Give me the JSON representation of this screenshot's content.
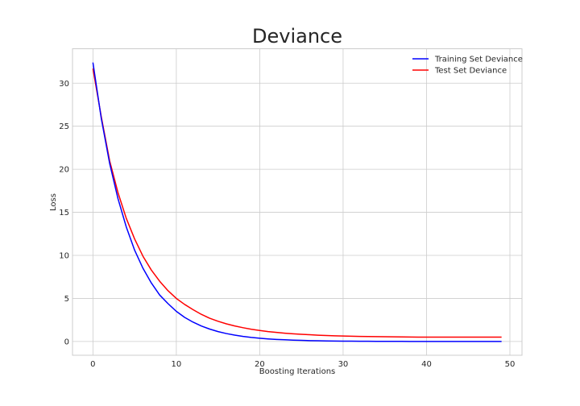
{
  "chart_data": {
    "type": "line",
    "title": "Deviance",
    "xlabel": "Boosting Iterations",
    "ylabel": "Loss",
    "xlim": [
      -2.45,
      51.45
    ],
    "ylim": [
      -1.6,
      34.0
    ],
    "xticks": [
      0,
      10,
      20,
      30,
      40,
      50
    ],
    "yticks": [
      0,
      5,
      10,
      15,
      20,
      25,
      30
    ],
    "grid": true,
    "legend_position": "top-right",
    "x": [
      0,
      1,
      2,
      3,
      4,
      5,
      6,
      7,
      8,
      9,
      10,
      11,
      12,
      13,
      14,
      15,
      16,
      17,
      18,
      19,
      20,
      21,
      22,
      23,
      24,
      25,
      26,
      27,
      28,
      29,
      30,
      31,
      32,
      33,
      34,
      35,
      36,
      37,
      38,
      39,
      40,
      41,
      42,
      43,
      44,
      45,
      46,
      47,
      48,
      49
    ],
    "series": [
      {
        "name": "Training Set Deviance",
        "color": "#0000ff",
        "values": [
          32.4,
          25.9,
          20.7,
          16.6,
          13.3,
          10.6,
          8.5,
          6.8,
          5.4,
          4.4,
          3.5,
          2.8,
          2.25,
          1.8,
          1.44,
          1.15,
          0.92,
          0.74,
          0.59,
          0.47,
          0.38,
          0.3,
          0.24,
          0.195,
          0.156,
          0.125,
          0.1,
          0.08,
          0.064,
          0.051,
          0.041,
          0.033,
          0.026,
          0.021,
          0.017,
          0.013,
          0.011,
          0.009,
          0.007,
          0.006,
          0.005,
          0.004,
          0.003,
          0.002,
          0.002,
          0.002,
          0.001,
          0.001,
          0.001,
          0.001
        ]
      },
      {
        "name": "Test Set Deviance",
        "color": "#ff0000",
        "values": [
          31.7,
          26.1,
          21.0,
          17.3,
          14.3,
          11.9,
          9.9,
          8.3,
          7.0,
          5.9,
          5.0,
          4.3,
          3.7,
          3.15,
          2.7,
          2.35,
          2.05,
          1.8,
          1.6,
          1.42,
          1.28,
          1.15,
          1.05,
          0.96,
          0.89,
          0.83,
          0.78,
          0.73,
          0.69,
          0.66,
          0.63,
          0.61,
          0.59,
          0.57,
          0.56,
          0.55,
          0.54,
          0.53,
          0.52,
          0.51,
          0.51,
          0.5,
          0.5,
          0.5,
          0.5,
          0.5,
          0.5,
          0.5,
          0.5,
          0.5
        ]
      }
    ],
    "colors": {
      "grid": "#cccccc",
      "frame": "#cccccc",
      "text": "#262626",
      "background": "#ffffff"
    }
  }
}
